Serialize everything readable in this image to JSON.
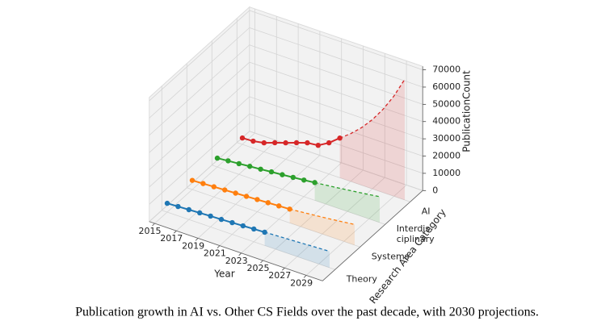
{
  "chart_data": {
    "type": "line3d",
    "caption": "Publication growth in AI vs. Other CS Fields over the past decade, with 2030 projections.",
    "xlabel": "Year",
    "ylabel": "Research Area Category",
    "zlabel": "PublicationCount",
    "categories": [
      "Theory",
      "Systems",
      "Interdis-\nciplinary",
      "AI"
    ],
    "x": [
      2015,
      2016,
      2017,
      2018,
      2019,
      2020,
      2021,
      2022,
      2023,
      2024,
      2025,
      2026,
      2027,
      2028,
      2029,
      2030
    ],
    "xlim": [
      2014.5,
      2030.5
    ],
    "xticks": [
      2015,
      2017,
      2019,
      2021,
      2023,
      2025,
      2027,
      2029
    ],
    "ylim": [
      -0.5,
      3.5
    ],
    "zlim": [
      0,
      72000
    ],
    "zticks": [
      0,
      10000,
      20000,
      30000,
      40000,
      50000,
      60000,
      70000
    ],
    "grid": true,
    "series": [
      {
        "name": "Theory",
        "color": "#1f77b4",
        "values": [
          5100,
          5400,
          5700,
          6000,
          6300,
          6500,
          6800,
          7100,
          7400,
          7700,
          null,
          null,
          null,
          null,
          null,
          null
        ],
        "projection": [
          null,
          null,
          null,
          null,
          null,
          null,
          null,
          null,
          null,
          7700,
          8000,
          8300,
          8600,
          8900,
          9200,
          9500
        ]
      },
      {
        "name": "Systems",
        "color": "#ff7f0e",
        "values": [
          5300,
          5600,
          5900,
          6200,
          6500,
          6800,
          7100,
          7400,
          7700,
          8000,
          null,
          null,
          null,
          null,
          null,
          null
        ],
        "projection": [
          null,
          null,
          null,
          null,
          null,
          null,
          null,
          null,
          null,
          8000,
          8600,
          9200,
          9800,
          10500,
          11200,
          12000
        ]
      },
      {
        "name": "Interdis-\nciplinary",
        "color": "#2ca02c",
        "values": [
          5100,
          5700,
          6200,
          6800,
          7300,
          7900,
          8400,
          9000,
          9600,
          10300,
          null,
          null,
          null,
          null,
          null,
          null
        ],
        "projection": [
          null,
          null,
          null,
          null,
          null,
          null,
          null,
          null,
          null,
          10300,
          11000,
          11700,
          12500,
          13300,
          14100,
          15000
        ]
      },
      {
        "name": "AI",
        "color": "#d62728",
        "values": [
          3700,
          4000,
          5200,
          7400,
          9500,
          11700,
          13800,
          14500,
          18100,
          23000,
          null,
          null,
          null,
          null,
          null,
          null
        ],
        "projection": [
          null,
          null,
          null,
          null,
          null,
          null,
          null,
          null,
          null,
          23000,
          27700,
          33300,
          40100,
          48300,
          58100,
          70000
        ]
      }
    ]
  }
}
